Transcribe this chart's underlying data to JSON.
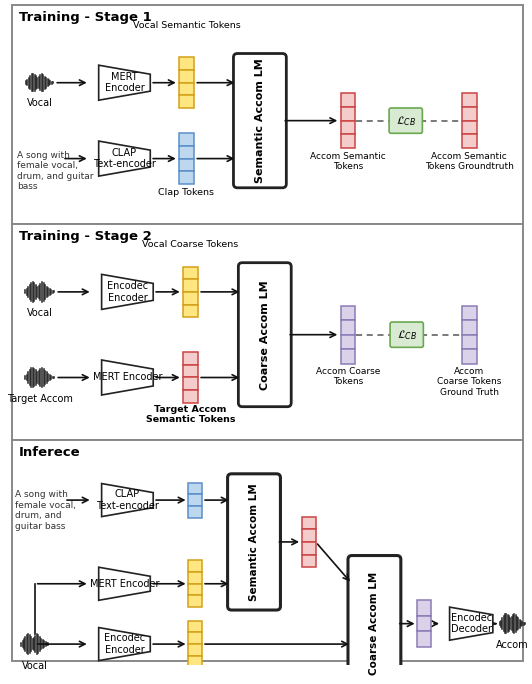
{
  "bg_color": "#ffffff",
  "colors": {
    "yellow_token": "#D4A017",
    "yellow_token_fill": "#FFE680",
    "blue_token": "#5B8FC9",
    "blue_token_fill": "#BDD7EE",
    "red_token": "#CC4444",
    "red_token_fill": "#F4CCCC",
    "purple_token": "#8B7BB5",
    "purple_token_fill": "#D9D2E9",
    "green_box": "#6AA84F",
    "green_box_fill": "#D9EAD3",
    "box_fill": "#ffffff",
    "box_border": "#222222",
    "arrow_color": "#111111",
    "waveform_color": "#222222",
    "section_border": "#888888",
    "title_color": "#000000"
  },
  "stage1": {
    "title": "Training - Stage 1",
    "vocal_label": "Vocal",
    "text_label": "A song with\nfemale vocal,\ndrum, and guitar\nbass",
    "mert_label": "MERT\nEncoder",
    "clap_label": "CLAP\nText-encoder",
    "lm_label": "Semantic Accom LM",
    "vocal_tokens_label": "Vocal Semantic Tokens",
    "clap_tokens_label": "Clap Tokens",
    "out1_label": "Accom Semantic\nTokens",
    "out2_label": "Accom Semantic\nTokens Groundtruth",
    "loss_label": "$\\mathcal{L}_{CB}$"
  },
  "stage2": {
    "title": "Training - Stage 2",
    "vocal_label": "Vocal",
    "accom_label": "Target Accom",
    "encodec_label": "Encodec\nEncoder",
    "mert_label": "MERT Encoder",
    "lm_label": "Coarse Accom LM",
    "vocal_tokens_label": "Vocal Coarse Tokens",
    "accom_tokens_label": "Target Accom\nSemantic Tokens",
    "out1_label": "Accom Coarse\nTokens",
    "out2_label": "Accom\nCoarse Tokens\nGround Truth",
    "loss_label": "$\\mathcal{L}_{CB}$"
  },
  "inference": {
    "title": "Inferece",
    "text_label": "A song with\nfemale vocal,\ndrum, and\nguitar bass",
    "vocal_label": "Vocal",
    "clap_label": "CLAP\nText-encoder",
    "mert_label": "MERT Encoder",
    "encodec_label": "Encodec\nEncoder",
    "sem_lm_label": "Semantic Accom LM",
    "coarse_lm_label": "Coarse Accom LM",
    "decoder_label": "Encodec\nDecoder",
    "accom_label": "Accom"
  }
}
